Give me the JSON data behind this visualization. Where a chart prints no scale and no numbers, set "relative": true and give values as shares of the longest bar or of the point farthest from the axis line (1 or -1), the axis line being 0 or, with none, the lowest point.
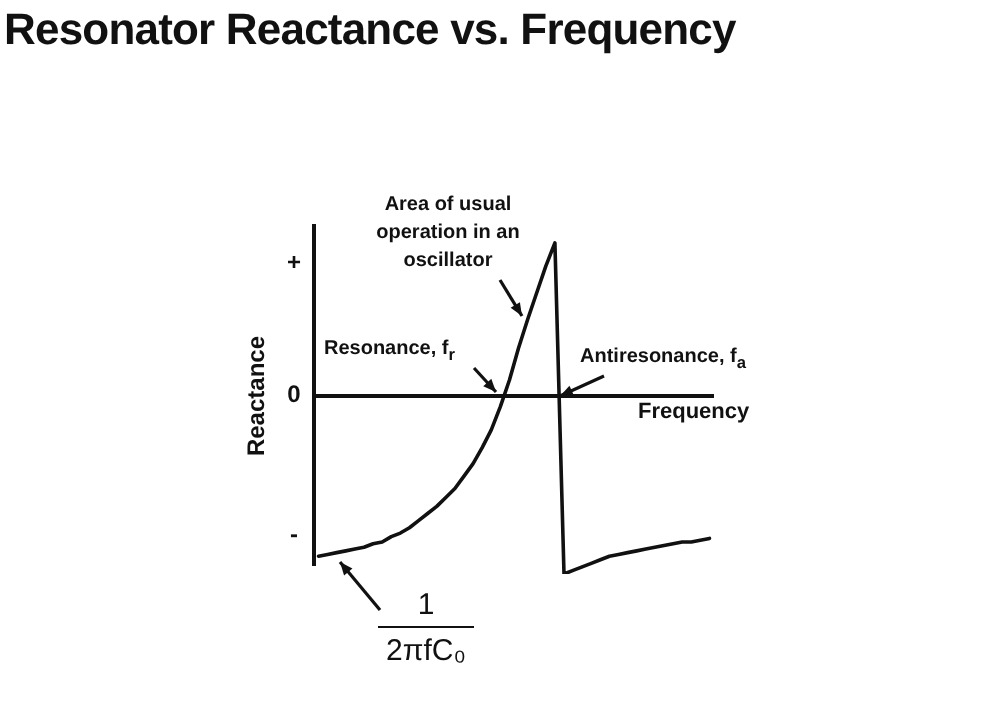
{
  "chart_data": {
    "type": "line",
    "title": "Resonator Reactance vs. Frequency",
    "xlabel": "Frequency",
    "ylabel": "Reactance",
    "relative": true,
    "legend": false,
    "marker": "none",
    "line_style": "solid",
    "categories": [
      null,
      null,
      null,
      null,
      null,
      null,
      null,
      null,
      null,
      null,
      null,
      null,
      null,
      null,
      null,
      null,
      null,
      null,
      null,
      null,
      null,
      null,
      null,
      null,
      null,
      null,
      null,
      null,
      null,
      null,
      null,
      null,
      null,
      null,
      null,
      null,
      null,
      null,
      null,
      null,
      null,
      null,
      null,
      null
    ],
    "series": [
      {
        "color": "#111111",
        "values": [
          -0.9,
          -0.89,
          -0.88,
          -0.87,
          -0.86,
          -0.85,
          -0.83,
          -0.82,
          -0.79,
          -0.77,
          -0.74,
          -0.7,
          -0.66,
          -0.62,
          -0.57,
          -0.52,
          -0.45,
          -0.38,
          -0.29,
          -0.19,
          -0.06,
          0.09,
          0.27,
          0.43,
          0.58,
          0.73,
          0.86,
          -1.0,
          -0.98,
          -0.96,
          -0.94,
          -0.92,
          -0.9,
          -0.89,
          -0.88,
          -0.87,
          -0.86,
          -0.85,
          -0.84,
          -0.83,
          -0.82,
          -0.82,
          -0.81,
          -0.8
        ]
      }
    ],
    "annotations": [
      "Area of usual operation in an oscillator",
      "Resonance, f$_{r}$",
      "Antiresonance, f$_{a}$",
      "1",
      "2πfC₀",
      "+",
      "0",
      "-"
    ]
  }
}
